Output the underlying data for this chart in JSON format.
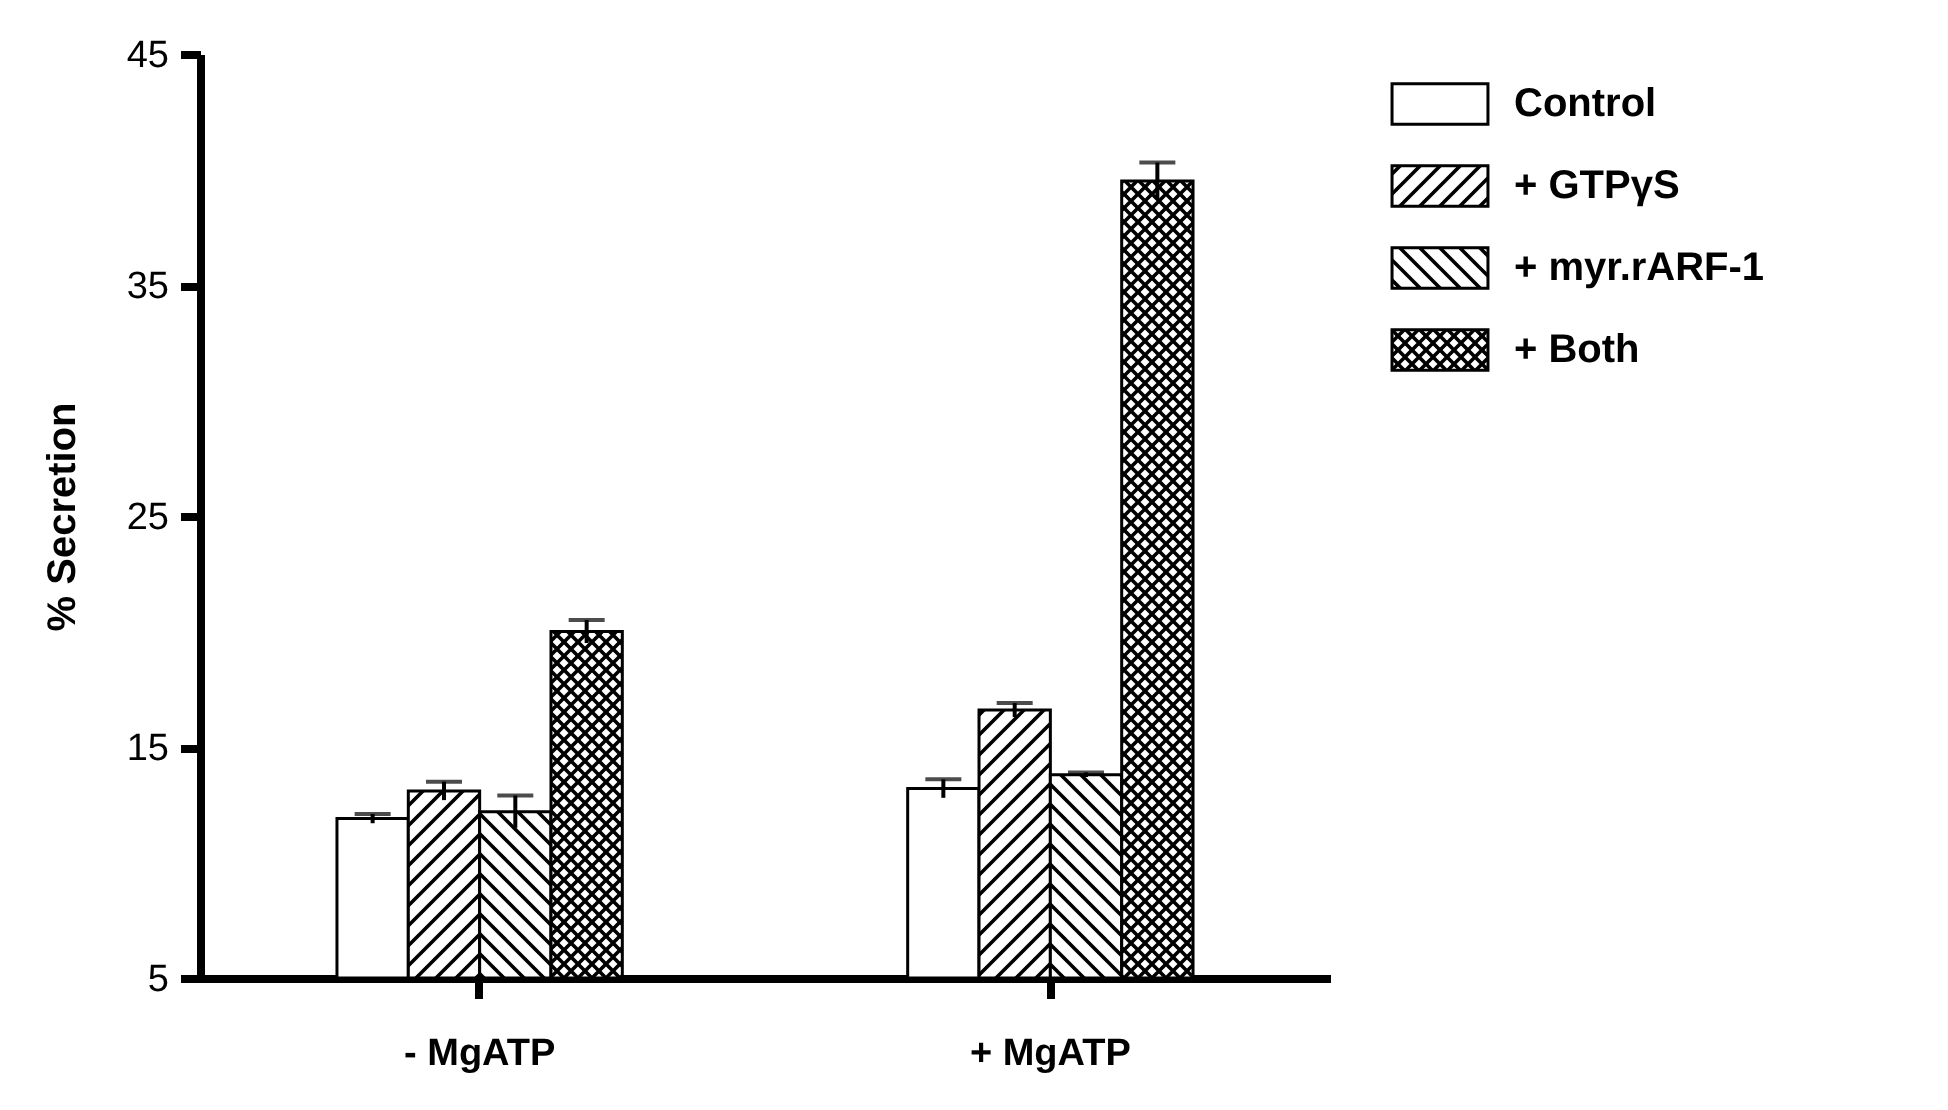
{
  "chart_data": {
    "type": "bar",
    "ylabel": "% Secretion",
    "categories": [
      "- MgATP",
      "+ MgATP"
    ],
    "series": [
      {
        "name": "Control",
        "color": "#ffffff",
        "values": [
          11.9,
          13.2
        ],
        "errors": [
          0.2,
          0.4
        ]
      },
      {
        "name": "+ GTPγS",
        "color": "#000000",
        "values": [
          13.1,
          16.6
        ],
        "errors": [
          0.4,
          0.3
        ]
      },
      {
        "name": "+ myr.rARF-1",
        "color": "#000000",
        "values": [
          12.2,
          13.8
        ],
        "errors": [
          0.7,
          0.1
        ]
      },
      {
        "name": "+ Both",
        "color": "#000000",
        "values": [
          20.0,
          39.5
        ],
        "errors": [
          0.5,
          0.8
        ]
      }
    ],
    "ylim": [
      5,
      45
    ],
    "yticks": [
      5,
      15,
      25,
      35,
      45
    ],
    "legend": "right",
    "grid": false
  }
}
